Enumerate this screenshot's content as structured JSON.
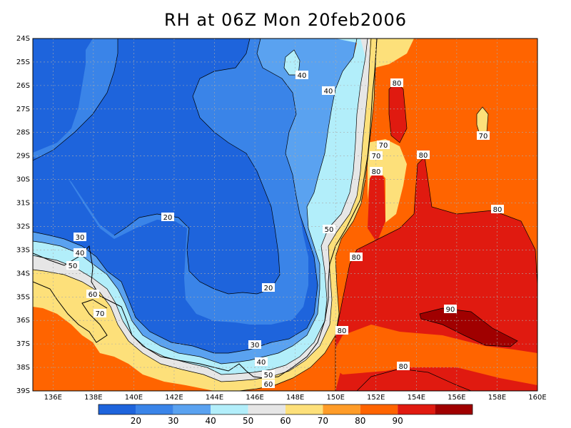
{
  "title": "RH at 06Z Mon 20feb2006",
  "map": {
    "lat_labels": [
      "24S",
      "25S",
      "26S",
      "27S",
      "28S",
      "29S",
      "30S",
      "31S",
      "32S",
      "33S",
      "34S",
      "35S",
      "36S",
      "37S",
      "38S",
      "39S"
    ],
    "lon_labels": [
      "136E",
      "138E",
      "140E",
      "142E",
      "144E",
      "146E",
      "148E",
      "150E",
      "152E",
      "154E",
      "156E",
      "158E",
      "160E"
    ],
    "lat_range": [
      -39,
      -24
    ],
    "lon_range": [
      135,
      160
    ],
    "contour_labels": [
      "40",
      "40",
      "80",
      "70",
      "70",
      "80",
      "80",
      "80",
      "20",
      "30",
      "40",
      "50",
      "50",
      "60",
      "70",
      "80",
      "20",
      "90",
      "80",
      "30",
      "40",
      "50",
      "60",
      "80",
      "70"
    ]
  },
  "colorbar": {
    "labels": [
      "20",
      "30",
      "40",
      "50",
      "60",
      "70",
      "80",
      "90"
    ],
    "colors": [
      "#1e64dc",
      "#3a84e8",
      "#5aa2f0",
      "#b2eefa",
      "#e6e6e6",
      "#fde07a",
      "#ff9c28",
      "#ff6400",
      "#e01a10",
      "#a00000"
    ]
  },
  "palette": {
    "lt10_20": "#1e64dc",
    "r20_30": "#3a84e8",
    "r30_40": "#5aa2f0",
    "r40_50": "#b2eefa",
    "r50_60": "#e6e6e6",
    "r60_70": "#fde07a",
    "r70_80": "#ff6400",
    "r80_90": "#e01a10",
    "gt90": "#a00000"
  }
}
